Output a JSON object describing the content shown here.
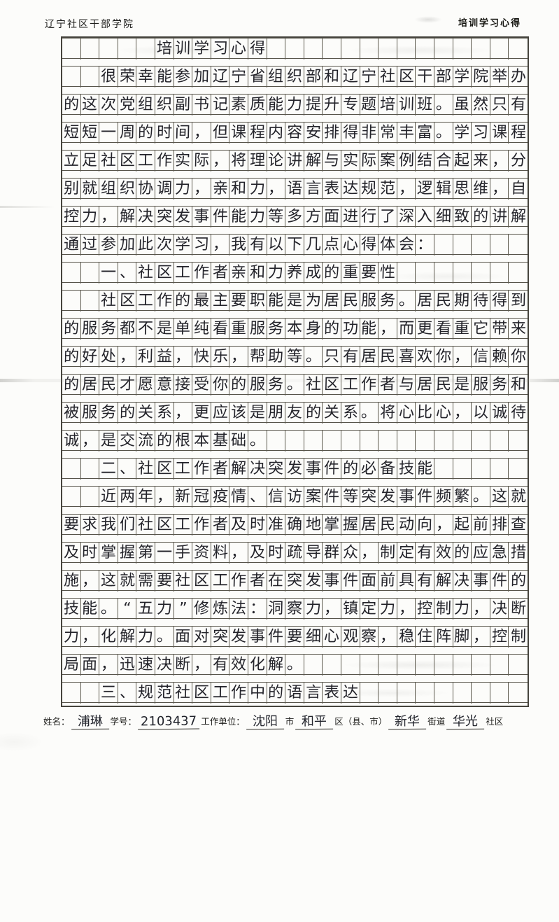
{
  "header": {
    "left": "辽宁社区干部学院",
    "right": "培训学习心得"
  },
  "manuscript": {
    "columns": 25,
    "rows": [
      {
        "kind": "title",
        "indent": 5,
        "text": "培训学习心得"
      },
      {
        "indent": 2,
        "text": "很荣幸能参加辽宁省组织部和辽宁社区干部学院举办"
      },
      {
        "indent": 0,
        "text": "的这次党组织副书记素质能力提升专题培训班。虽然只有"
      },
      {
        "indent": 0,
        "text": "短短一周的时间，但课程内容安排得非常丰富。学习课程"
      },
      {
        "indent": 0,
        "text": "立足社区工作实际，将理论讲解与实际案例结合起来，分"
      },
      {
        "indent": 0,
        "text": "别就组织协调力，亲和力，语言表达规范，逻辑思维，自"
      },
      {
        "indent": 0,
        "text": "控力，解决突发事件能力等多方面进行了深入细致的讲解"
      },
      {
        "indent": 0,
        "text": "通过参加此次学习，我有以下几点心得体会："
      },
      {
        "indent": 2,
        "text": "一、社区工作者亲和力养成的重要性"
      },
      {
        "indent": 2,
        "text": "社区工作的最主要职能是为居民服务。居民期待得到"
      },
      {
        "indent": 0,
        "text": "的服务都不是单纯看重服务本身的功能，而更看重它带来"
      },
      {
        "indent": 0,
        "text": "的好处，利益，快乐，帮助等。只有居民喜欢你，信赖你"
      },
      {
        "indent": 0,
        "text": "的居民才愿意接受你的服务。社区工作者与居民是服务和"
      },
      {
        "indent": 0,
        "text": "被服务的关系，更应该是朋友的关系。将心比心，以诚待"
      },
      {
        "indent": 0,
        "text": "诚，是交流的根本基础。"
      },
      {
        "indent": 2,
        "text": "二、社区工作者解决突发事件的必备技能"
      },
      {
        "indent": 2,
        "text": "近两年，新冠疫情、信访案件等突发事件频繁。这就"
      },
      {
        "indent": 0,
        "text": "要求我们社区工作者及时准确地掌握居民动向，起前排查"
      },
      {
        "indent": 0,
        "text": "及时掌握第一手资料，及时疏导群众，制定有效的应急措"
      },
      {
        "indent": 0,
        "text": "施，这就需要社区工作者在突发事件面前具有解决事件的"
      },
      {
        "indent": 0,
        "text": "技能。“五力”修炼法：洞察力，镇定力，控制力，决断"
      },
      {
        "indent": 0,
        "text": "力，化解力。面对突发事件要细心观察，稳住阵脚，控制"
      },
      {
        "indent": 0,
        "text": "局面，迅速决断，有效化解。"
      },
      {
        "indent": 2,
        "text": "三、规范社区工作中的语言表达"
      }
    ]
  },
  "footer": {
    "segments": [
      {
        "type": "label",
        "text": "姓名："
      },
      {
        "type": "fill",
        "text": "浦琳"
      },
      {
        "type": "label",
        "text": "学号："
      },
      {
        "type": "fill",
        "text": "2103437"
      },
      {
        "type": "label",
        "text": "工作单位："
      },
      {
        "type": "fill",
        "text": "沈阳"
      },
      {
        "type": "label",
        "text": "市"
      },
      {
        "type": "fill",
        "text": "和平"
      },
      {
        "type": "label",
        "text": "区（县、市）"
      },
      {
        "type": "fill",
        "text": "新华"
      },
      {
        "type": "label",
        "text": "街道"
      },
      {
        "type": "fill",
        "text": "华光"
      },
      {
        "type": "label",
        "text": "社区"
      }
    ]
  }
}
